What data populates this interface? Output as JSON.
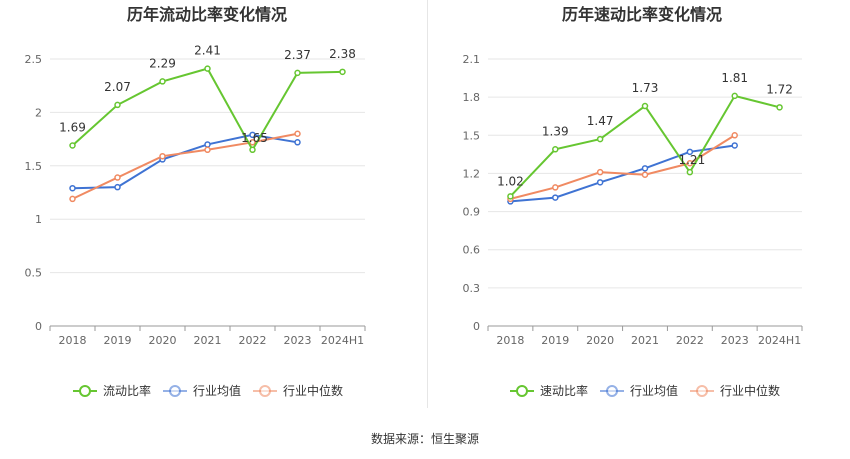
{
  "source": "数据来源：恒生聚源",
  "colors": {
    "main": "#66c631",
    "avg": "#3f73d3",
    "median": "#f08a62",
    "grid": "#e6e6e6",
    "axis": "#999999"
  },
  "chart_data": [
    {
      "type": "line",
      "title": "历年流动比率变化情况",
      "categories": [
        "2018",
        "2019",
        "2020",
        "2021",
        "2022",
        "2023",
        "2024H1"
      ],
      "ylim": [
        0,
        2.5
      ],
      "yticks": [
        "0",
        "0.5",
        "1",
        "1.5",
        "2",
        "2.5"
      ],
      "legend_position": "bottom",
      "series": [
        {
          "name": "流动比率",
          "color": "#66c631",
          "values": [
            1.69,
            2.07,
            2.29,
            2.41,
            1.65,
            2.37,
            2.38
          ],
          "labels": [
            "1.69",
            "2.07",
            "2.29",
            "2.41",
            "1.65",
            "2.37",
            "2.38"
          ]
        },
        {
          "name": "行业均值",
          "color": "#3f73d3",
          "values": [
            1.29,
            1.3,
            1.56,
            1.7,
            1.79,
            1.72,
            null
          ]
        },
        {
          "name": "行业中位数",
          "color": "#f08a62",
          "values": [
            1.19,
            1.39,
            1.59,
            1.65,
            1.72,
            1.8,
            null
          ]
        }
      ]
    },
    {
      "type": "line",
      "title": "历年速动比率变化情况",
      "categories": [
        "2018",
        "2019",
        "2020",
        "2021",
        "2022",
        "2023",
        "2024H1"
      ],
      "ylim": [
        0,
        2.1
      ],
      "yticks": [
        "0",
        "0.3",
        "0.6",
        "0.9",
        "1.2",
        "1.5",
        "1.8",
        "2.1"
      ],
      "legend_position": "bottom",
      "series": [
        {
          "name": "速动比率",
          "color": "#66c631",
          "values": [
            1.02,
            1.39,
            1.47,
            1.73,
            1.21,
            1.81,
            1.72
          ],
          "labels": [
            "1.02",
            "1.39",
            "1.47",
            "1.73",
            "1.21",
            "1.81",
            "1.72"
          ]
        },
        {
          "name": "行业均值",
          "color": "#3f73d3",
          "values": [
            0.98,
            1.01,
            1.13,
            1.24,
            1.37,
            1.42,
            null
          ]
        },
        {
          "name": "行业中位数",
          "color": "#f08a62",
          "values": [
            1.0,
            1.09,
            1.21,
            1.19,
            1.28,
            1.5,
            null
          ]
        }
      ]
    }
  ]
}
